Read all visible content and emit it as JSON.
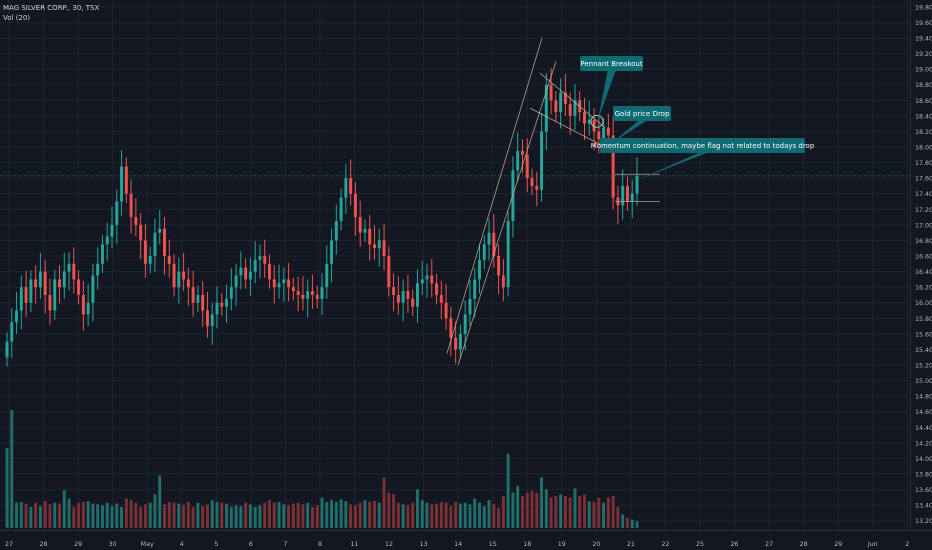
{
  "legend": {
    "symbol_line": "MAG SILVER CORP., 30, TSX",
    "volume_line": "Vol (20)"
  },
  "chart_data": {
    "type": "candlestick",
    "symbol": "MAG SILVER CORP.",
    "interval": "30",
    "exchange": "TSX",
    "ylim": [
      13.1,
      19.85
    ],
    "y_ticks": [
      "19.80",
      "19.60",
      "19.40",
      "19.20",
      "19.00",
      "18.80",
      "18.60",
      "18.40",
      "18.20",
      "18.00",
      "17.80",
      "17.60",
      "17.40",
      "17.20",
      "17.00",
      "16.80",
      "16.60",
      "16.40",
      "16.20",
      "16.00",
      "15.80",
      "15.60",
      "15.40",
      "15.20",
      "15.00",
      "14.80",
      "14.60",
      "14.40",
      "14.20",
      "14.00",
      "13.80",
      "13.60",
      "13.40",
      "13.20"
    ],
    "x_ticks": [
      "27",
      "28",
      "29",
      "30",
      "May",
      "4",
      "5",
      "6",
      "7",
      "8",
      "11",
      "12",
      "13",
      "14",
      "15",
      "18",
      "19",
      "20",
      "21",
      "22",
      "25",
      "26",
      "27",
      "28",
      "29",
      "Jun",
      "2"
    ],
    "last_price": "17.63",
    "last_price_value": 17.63,
    "colors": {
      "background": "#131722",
      "grid": "#1f2433",
      "up": "#26a69a",
      "down": "#ef5350",
      "up_volume": "#1f6f6a",
      "down_volume": "#7c3035",
      "price_line": "#26a69a",
      "drawing": "#c9b79c",
      "callout_bg": "#0f6b73",
      "callout_text": "#ffffff",
      "axis_text": "#b2b5be"
    },
    "closes": [
      15.5,
      15.75,
      15.9,
      16.2,
      16.0,
      16.3,
      16.2,
      16.4,
      16.1,
      15.9,
      16.3,
      16.2,
      16.4,
      16.5,
      16.3,
      16.1,
      15.85,
      16.0,
      16.35,
      16.5,
      16.75,
      16.85,
      17.0,
      17.3,
      17.75,
      17.4,
      17.1,
      17.0,
      16.8,
      16.5,
      16.6,
      16.9,
      16.95,
      16.6,
      16.5,
      16.2,
      16.4,
      16.3,
      16.2,
      16.0,
      16.1,
      15.9,
      15.7,
      15.85,
      16.0,
      15.95,
      16.05,
      16.2,
      16.35,
      16.45,
      16.3,
      16.4,
      16.55,
      16.6,
      16.5,
      16.3,
      16.2,
      16.25,
      16.3,
      16.2,
      16.15,
      16.1,
      16.05,
      16.15,
      16.1,
      16.05,
      16.2,
      16.5,
      16.8,
      17.05,
      17.35,
      17.6,
      17.4,
      17.1,
      16.9,
      16.95,
      16.75,
      16.7,
      16.8,
      16.6,
      16.2,
      16.1,
      16.0,
      16.15,
      16.05,
      15.95,
      16.25,
      16.3,
      16.35,
      16.25,
      16.1,
      16.0,
      15.8,
      15.55,
      15.4,
      15.6,
      15.85,
      16.05,
      16.3,
      16.55,
      16.75,
      16.9,
      16.6,
      16.35,
      16.2,
      17.05,
      17.7,
      17.95,
      17.9,
      17.6,
      17.5,
      17.45,
      18.2,
      18.8,
      18.6,
      18.45,
      18.7,
      18.55,
      18.4,
      18.6,
      18.45,
      18.3,
      18.35,
      18.2,
      18.1,
      18.25,
      18.15,
      17.35,
      17.25,
      17.5,
      17.3,
      17.4,
      17.63
    ],
    "volumes": [
      950,
      1400,
      300,
      310,
      290,
      250,
      300,
      260,
      320,
      280,
      300,
      290,
      450,
      350,
      250,
      300,
      310,
      320,
      290,
      280,
      270,
      300,
      260,
      290,
      250,
      350,
      330,
      300,
      250,
      280,
      300,
      400,
      620,
      280,
      310,
      300,
      290,
      270,
      310,
      250,
      300,
      260,
      280,
      330,
      310,
      300,
      290,
      250,
      270,
      260,
      300,
      280,
      250,
      270,
      300,
      330,
      300,
      310,
      280,
      270,
      290,
      300,
      280,
      300,
      250,
      270,
      360,
      310,
      330,
      310,
      340,
      320,
      280,
      270,
      300,
      330,
      310,
      320,
      300,
      600,
      420,
      400,
      300,
      280,
      270,
      300,
      460,
      330,
      300,
      280,
      290,
      310,
      300,
      260,
      310,
      290,
      300,
      280,
      350,
      300,
      260,
      330,
      280,
      240,
      380,
      880,
      420,
      500,
      380,
      420,
      440,
      420,
      600,
      460,
      360,
      380,
      400,
      380,
      360,
      470,
      380,
      400,
      320,
      310,
      360,
      300,
      360,
      380,
      250,
      160,
      120,
      100,
      80
    ],
    "annotations": [
      {
        "id": "ann1",
        "text": "Pennant Breakout"
      },
      {
        "id": "ann2",
        "text": "Gold price Drop"
      },
      {
        "id": "ann3",
        "text": "Momentum continuation, maybe flag not related to todays drop"
      }
    ]
  }
}
